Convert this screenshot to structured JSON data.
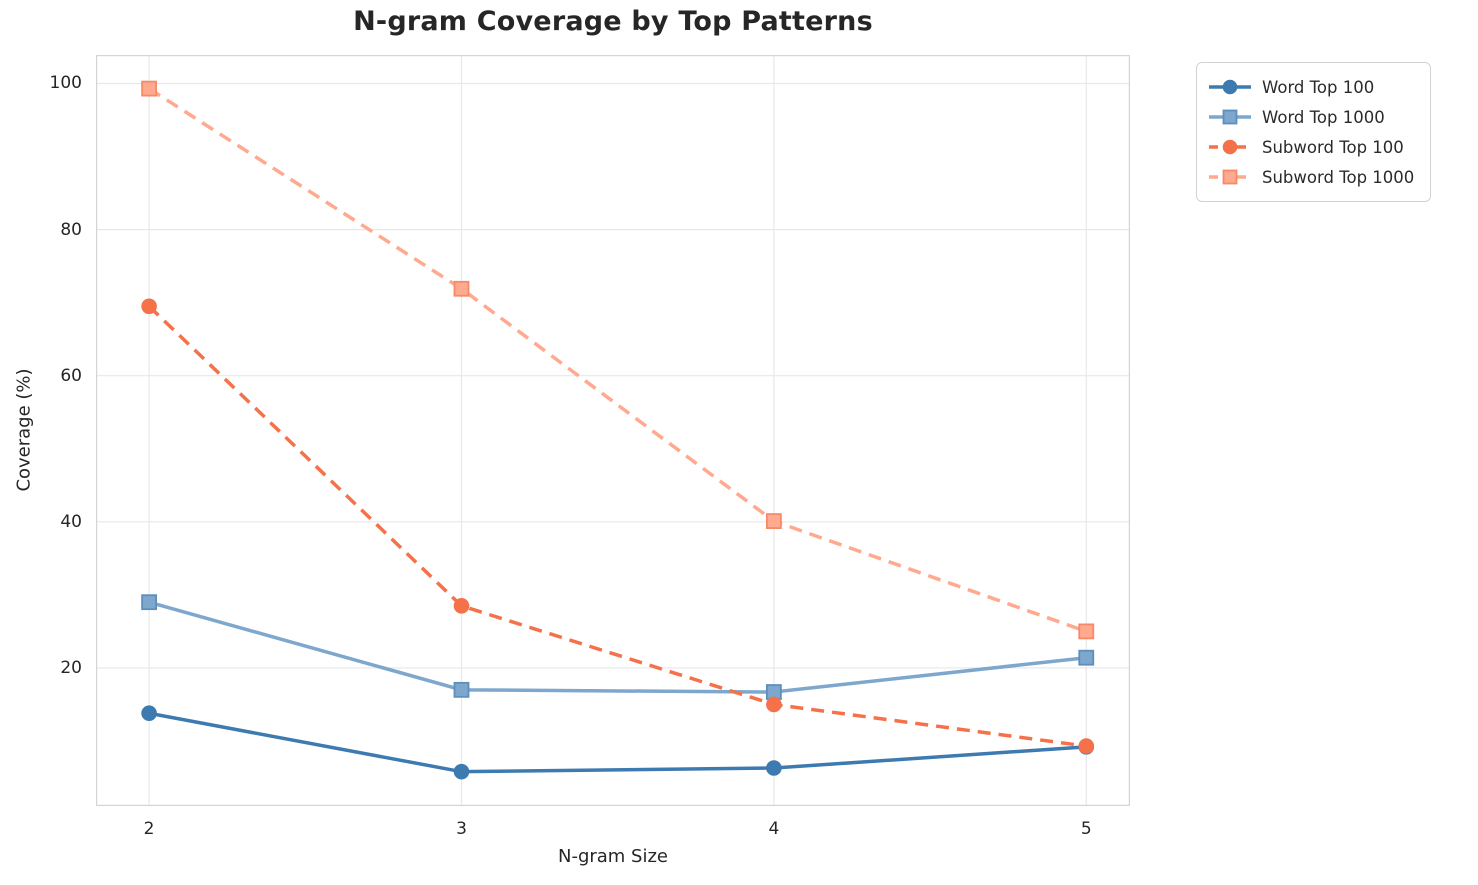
{
  "chart_data": {
    "type": "line",
    "title": "N-gram Coverage by Top Patterns",
    "xlabel": "N-gram Size",
    "ylabel": "Coverage (%)",
    "x": [
      2,
      3,
      4,
      5
    ],
    "xticks": [
      "2",
      "3",
      "4",
      "5"
    ],
    "yticks": [
      20,
      40,
      60,
      80,
      100
    ],
    "xlim": [
      1.83,
      5.14
    ],
    "ylim": [
      1.1,
      103.9
    ],
    "grid": true,
    "background_color": "#ffffff",
    "grid_color": "#e8e8e8",
    "spine_color": "#d4d4d4",
    "legend_position": "outside-right",
    "series": [
      {
        "name": "Word Top 100",
        "color": "#3d7ab0",
        "edge_color": "#3d7ab0",
        "line_style": "solid",
        "marker": "circle",
        "values": [
          13.8,
          5.8,
          6.3,
          9.2
        ]
      },
      {
        "name": "Word Top 1000",
        "color": "#7da7cc",
        "edge_color": "#5d8fbd",
        "line_style": "solid",
        "marker": "square",
        "values": [
          29.0,
          17.0,
          16.7,
          21.4
        ]
      },
      {
        "name": "Subword Top 100",
        "color": "#f4714a",
        "edge_color": "#f4714a",
        "line_style": "dashed",
        "marker": "circle",
        "values": [
          69.5,
          28.5,
          15.0,
          9.3
        ]
      },
      {
        "name": "Subword Top 1000",
        "color": "#ffa98e",
        "edge_color": "#f58a69",
        "line_style": "dashed",
        "marker": "square",
        "values": [
          99.3,
          71.9,
          40.1,
          25.0
        ]
      }
    ]
  }
}
